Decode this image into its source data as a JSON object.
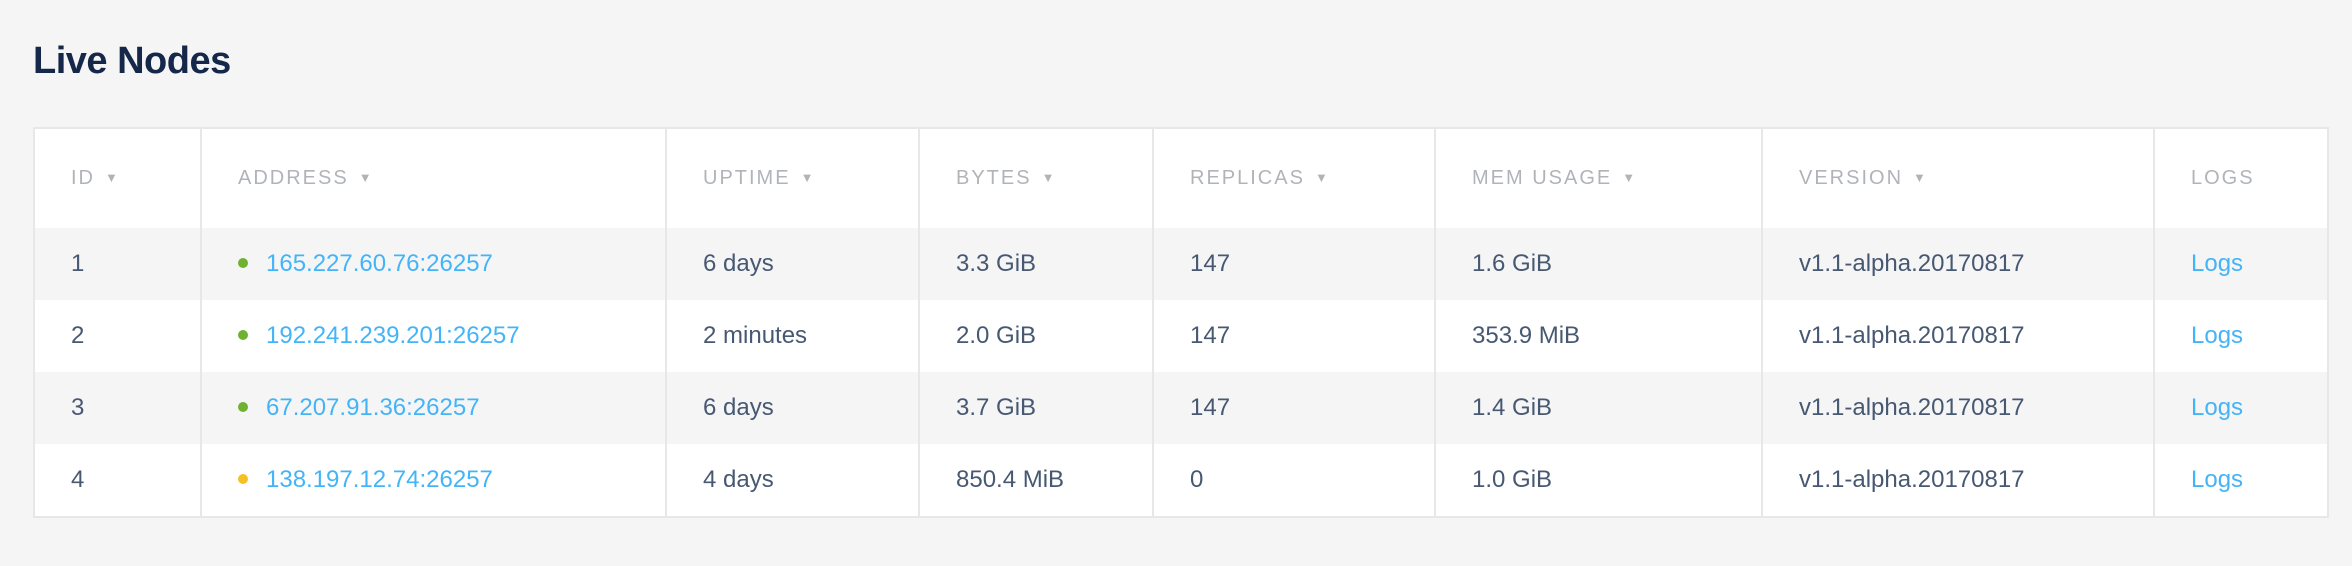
{
  "title": "Live Nodes",
  "columns": [
    {
      "label": "ID",
      "sortable": true
    },
    {
      "label": "ADDRESS",
      "sortable": true
    },
    {
      "label": "UPTIME",
      "sortable": true
    },
    {
      "label": "BYTES",
      "sortable": true
    },
    {
      "label": "REPLICAS",
      "sortable": true
    },
    {
      "label": "MEM USAGE",
      "sortable": true
    },
    {
      "label": "VERSION",
      "sortable": true
    },
    {
      "label": "LOGS",
      "sortable": false
    }
  ],
  "sort_icon": "▼",
  "status_colors": {
    "healthy": "#6eb22f",
    "suspect": "#f5c026"
  },
  "rows": [
    {
      "id": "1",
      "status": "healthy",
      "address": "165.227.60.76:26257",
      "uptime": "6 days",
      "bytes": "3.3 GiB",
      "replicas": "147",
      "mem_usage": "1.6 GiB",
      "version": "v1.1-alpha.20170817",
      "logs": "Logs"
    },
    {
      "id": "2",
      "status": "healthy",
      "address": "192.241.239.201:26257",
      "uptime": "2 minutes",
      "bytes": "2.0 GiB",
      "replicas": "147",
      "mem_usage": "353.9 MiB",
      "version": "v1.1-alpha.20170817",
      "logs": "Logs"
    },
    {
      "id": "3",
      "status": "healthy",
      "address": "67.207.91.36:26257",
      "uptime": "6 days",
      "bytes": "3.7 GiB",
      "replicas": "147",
      "mem_usage": "1.4 GiB",
      "version": "v1.1-alpha.20170817",
      "logs": "Logs"
    },
    {
      "id": "4",
      "status": "suspect",
      "address": "138.197.12.74:26257",
      "uptime": "4 days",
      "bytes": "850.4 MiB",
      "replicas": "0",
      "mem_usage": "1.0 GiB",
      "version": "v1.1-alpha.20170817",
      "logs": "Logs"
    }
  ]
}
